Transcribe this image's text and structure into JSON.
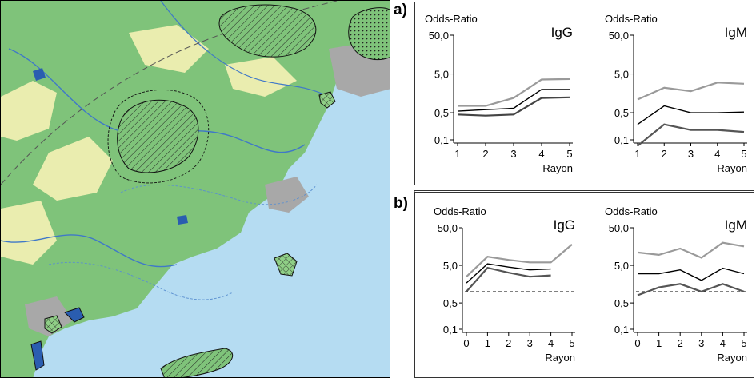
{
  "panel_labels": {
    "a": "a)",
    "b": "b)"
  },
  "map": {
    "colors": {
      "sea": "#b5dcf2",
      "forest": "#7fc37a",
      "clearing": "#fdf5b8",
      "urban": "#a8a8a8",
      "river": "#3f78c8",
      "lake": "#2a5db0",
      "buffer_line": "#5a8fd0"
    }
  },
  "chart_data": [
    {
      "panel": "a",
      "type": "line",
      "title": "IgG",
      "ylabel": "Odds-Ratio",
      "xlabel": "Rayon",
      "yscale": "log",
      "ylim": [
        0.1,
        50
      ],
      "yticks": [
        "50,0",
        "5,0",
        "0,5",
        "0,1"
      ],
      "ytick_values": [
        50,
        5,
        0.5,
        0.1
      ],
      "x": [
        1,
        2,
        3,
        4,
        5
      ],
      "xticks": [
        "1",
        "2",
        "3",
        "4",
        "5"
      ],
      "reference": 1,
      "series": [
        {
          "values": [
            0.75,
            0.75,
            1.2,
            3.6,
            3.7
          ],
          "color": "#9a9a9a"
        },
        {
          "values": [
            0.55,
            0.6,
            0.65,
            2.0,
            2.0
          ],
          "color": "#000000"
        },
        {
          "values": [
            0.45,
            0.42,
            0.45,
            1.2,
            1.25
          ],
          "color": "#444444"
        }
      ]
    },
    {
      "panel": "a",
      "type": "line",
      "title": "IgM",
      "ylabel": "Odds-Ratio",
      "xlabel": "Rayon",
      "yscale": "log",
      "ylim": [
        0.1,
        50
      ],
      "yticks": [
        "50,0",
        "5,0",
        "0,5",
        "0,1"
      ],
      "ytick_values": [
        50,
        5,
        0.5,
        0.1
      ],
      "x": [
        1,
        2,
        3,
        4,
        5
      ],
      "xticks": [
        "1",
        "2",
        "3",
        "4",
        "5"
      ],
      "reference": 1,
      "series": [
        {
          "values": [
            1.1,
            2.2,
            1.8,
            3.0,
            2.8
          ],
          "color": "#9a9a9a"
        },
        {
          "values": [
            0.25,
            0.75,
            0.5,
            0.5,
            0.52
          ],
          "color": "#000000"
        },
        {
          "values": [
            0.07,
            0.25,
            0.18,
            0.18,
            0.16
          ],
          "color": "#555555"
        }
      ]
    },
    {
      "panel": "b",
      "type": "line",
      "title": "IgG",
      "ylabel": "Odds-Ratio",
      "xlabel": "Rayon",
      "yscale": "log",
      "ylim": [
        0.1,
        50
      ],
      "yticks": [
        "50,0",
        "5,0",
        "0,5",
        "0,1"
      ],
      "ytick_values": [
        50,
        5,
        0.5,
        0.1
      ],
      "x": [
        0,
        1,
        2,
        3,
        4,
        5
      ],
      "xticks": [
        "0",
        "1",
        "2",
        "3",
        "4",
        "5"
      ],
      "reference": 1,
      "series": [
        {
          "x": [
            0,
            1,
            2,
            3,
            4,
            5
          ],
          "values": [
            2.5,
            8.5,
            7.0,
            6.0,
            6.0,
            18.0
          ],
          "color": "#9a9a9a"
        },
        {
          "x": [
            0,
            1,
            2,
            3,
            4
          ],
          "values": [
            1.7,
            5.5,
            4.5,
            3.8,
            4.0
          ],
          "color": "#000000"
        },
        {
          "x": [
            0,
            1,
            2,
            3,
            4
          ],
          "values": [
            1.0,
            4.3,
            3.2,
            2.5,
            2.7
          ],
          "color": "#555555"
        }
      ]
    },
    {
      "panel": "b",
      "type": "line",
      "title": "IgM",
      "ylabel": "Odds-Ratio",
      "xlabel": "Rayon",
      "yscale": "log",
      "ylim": [
        0.1,
        50
      ],
      "yticks": [
        "50,0",
        "5,0",
        "0,5",
        "0,1"
      ],
      "ytick_values": [
        50,
        5,
        0.5,
        0.1
      ],
      "x": [
        0,
        1,
        2,
        3,
        4,
        5
      ],
      "xticks": [
        "0",
        "1",
        "2",
        "3",
        "4",
        "5"
      ],
      "reference": 1,
      "series": [
        {
          "values": [
            11.0,
            9.5,
            14.0,
            8.0,
            20.0,
            16.0
          ],
          "color": "#9a9a9a"
        },
        {
          "values": [
            3.0,
            3.0,
            3.8,
            2.0,
            4.2,
            3.0
          ],
          "color": "#000000"
        },
        {
          "values": [
            0.8,
            1.3,
            1.6,
            1.0,
            1.6,
            1.0
          ],
          "color": "#555555"
        }
      ]
    }
  ]
}
